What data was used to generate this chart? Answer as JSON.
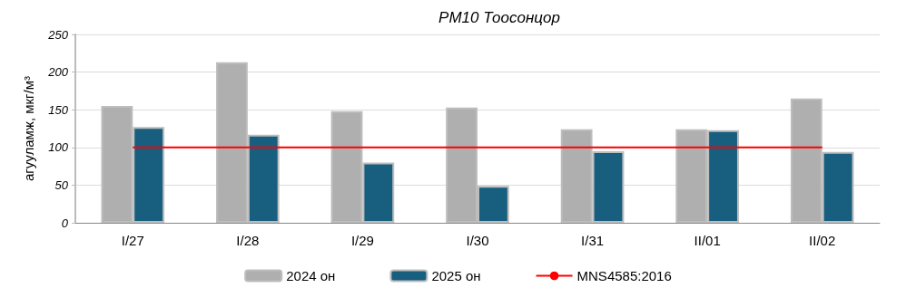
{
  "chart_data": {
    "type": "bar",
    "title": "PM10 Тоосонцор",
    "ylabel": "агууламж, мкг/м³",
    "categories": [
      "I/27",
      "I/28",
      "I/29",
      "I/30",
      "I/31",
      "II/01",
      "II/02"
    ],
    "series": [
      {
        "name": "2024 он",
        "color": "#afafaf",
        "values": [
          155,
          213,
          148,
          153,
          124,
          124,
          165
        ]
      },
      {
        "name": "2025 он",
        "color": "#175e7f",
        "values": [
          127,
          117,
          80,
          49,
          95,
          123,
          94
        ]
      },
      {
        "name": "MNS4585:2016",
        "type": "line",
        "color": "#ff0000",
        "values": [
          100,
          100,
          100,
          100,
          100,
          100,
          100
        ]
      }
    ],
    "ylim": [
      0,
      250
    ],
    "yticks": [
      0,
      50,
      100,
      150,
      200,
      250
    ],
    "grid": "y",
    "legend": "bottom",
    "marker": "none"
  }
}
